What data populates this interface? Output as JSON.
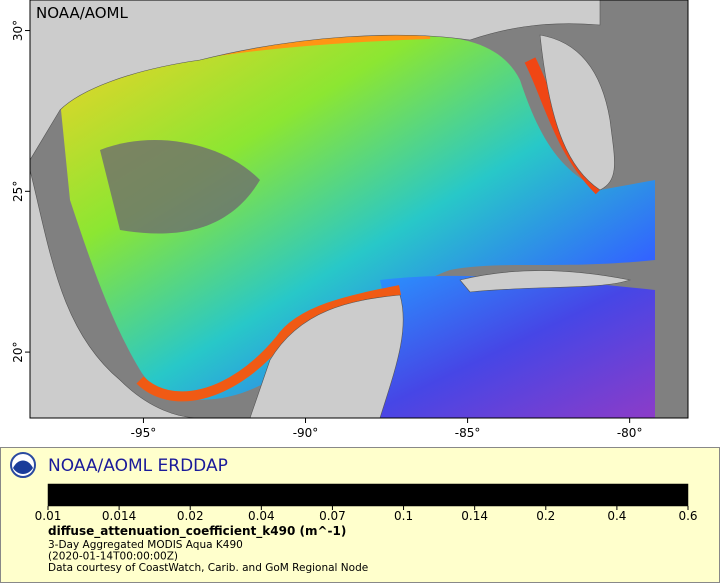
{
  "map": {
    "label": "NOAA/AOML",
    "lonlim": [
      -98.5,
      -78.2
    ],
    "latlim": [
      17.95,
      30.95
    ],
    "lon_ticks": [
      {
        "value": -95,
        "label": "-95°"
      },
      {
        "value": -90,
        "label": "-90°"
      },
      {
        "value": -85,
        "label": "-85°"
      },
      {
        "value": -80,
        "label": "-80°"
      }
    ],
    "lat_ticks": [
      {
        "value": 20,
        "label": "20°"
      },
      {
        "value": 25,
        "label": "25°"
      },
      {
        "value": 30,
        "label": "30°"
      }
    ]
  },
  "legend": {
    "title": "NOAA/AOML ERDDAP",
    "colorbar": {
      "scale": "log",
      "ticks": [
        0.01,
        0.014,
        0.02,
        0.04,
        0.07,
        0.1,
        0.14,
        0.2,
        0.4,
        0.6
      ],
      "colors": [
        "#6a0a8a",
        "#c21ad6",
        "#5a2ee6",
        "#1e64ff",
        "#14c8e6",
        "#32e68c",
        "#8ce632",
        "#f0e628",
        "#ff9614",
        "#f03c0a",
        "#8c0a0a"
      ]
    },
    "variable": "diffuse_attenuation_coefficient_k490 (m^-1)",
    "lines": [
      "3-Day Aggregated MODIS Aqua K490",
      "(2020-01-14T00:00:00Z)",
      "Data courtesy of CoastWatch, Carib. and GoM Regional Node"
    ]
  }
}
